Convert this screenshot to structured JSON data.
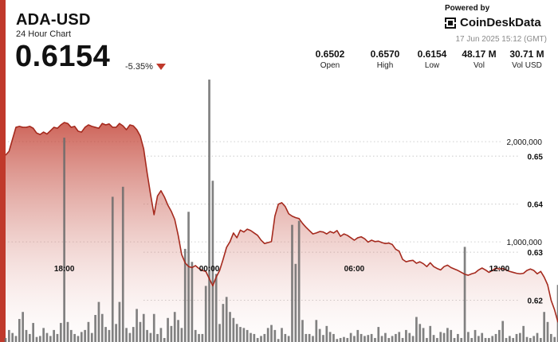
{
  "header": {
    "title": "ADA-USD",
    "subtitle": "24 Hour Chart",
    "price": "0.6154",
    "change": "-5.35%"
  },
  "branding": {
    "powered_by": "Powered by",
    "name": "CoinDeskData",
    "timestamp": "17 Jun 2025 15:12 (GMT)"
  },
  "stats": [
    {
      "value": "0.6502",
      "label": "Open"
    },
    {
      "value": "0.6570",
      "label": "High"
    },
    {
      "value": "0.6154",
      "label": "Low"
    },
    {
      "value": "48.17 M",
      "label": "Vol"
    },
    {
      "value": "30.71 M",
      "label": "Vol USD"
    }
  ],
  "colors": {
    "accent": "#c0392b",
    "line": "#a52a1e",
    "volume_bars": "#6b6b6b"
  },
  "chart_data": {
    "type": "area",
    "price_axis": {
      "ticks": [
        "0.65",
        "0.64",
        "0.63",
        "0.62"
      ],
      "ylim": [
        0.6113,
        0.6676
      ]
    },
    "volume_axis": {
      "ticks": [
        "2,000,000",
        "1,000,000"
      ],
      "ylim": [
        0,
        2700000
      ]
    },
    "x_ticks": [
      {
        "label": "18:00",
        "index": 17
      },
      {
        "label": "00:00",
        "index": 59
      },
      {
        "label": "06:00",
        "index": 101
      },
      {
        "label": "12:00",
        "index": 143
      }
    ],
    "grid": "horizontal dotted",
    "price_series": {
      "name": "ADA-USD",
      "values": [
        0.6502,
        0.651,
        0.6535,
        0.656,
        0.6562,
        0.656,
        0.656,
        0.6562,
        0.6558,
        0.6548,
        0.6545,
        0.655,
        0.6546,
        0.6553,
        0.656,
        0.6558,
        0.6565,
        0.657,
        0.6568,
        0.656,
        0.6562,
        0.6552,
        0.655,
        0.656,
        0.6565,
        0.6562,
        0.656,
        0.6558,
        0.6568,
        0.6565,
        0.6567,
        0.656,
        0.656,
        0.6568,
        0.6563,
        0.6555,
        0.6565,
        0.6563,
        0.6555,
        0.6542,
        0.6515,
        0.6465,
        0.642,
        0.6378,
        0.6417,
        0.6428,
        0.6415,
        0.6398,
        0.6385,
        0.6368,
        0.6335,
        0.6295,
        0.6278,
        0.627,
        0.6268,
        0.6272,
        0.6266,
        0.6262,
        0.626,
        0.6245,
        0.623,
        0.6248,
        0.6262,
        0.6285,
        0.631,
        0.6322,
        0.634,
        0.633,
        0.6346,
        0.6342,
        0.6348,
        0.6345,
        0.634,
        0.6335,
        0.6325,
        0.6318,
        0.632,
        0.6322,
        0.6375,
        0.64,
        0.6403,
        0.6395,
        0.638,
        0.6375,
        0.6372,
        0.637,
        0.636,
        0.6352,
        0.6345,
        0.6338,
        0.634,
        0.6343,
        0.6342,
        0.6338,
        0.6343,
        0.634,
        0.6345,
        0.6333,
        0.6338,
        0.6335,
        0.633,
        0.6325,
        0.633,
        0.6332,
        0.6328,
        0.6321,
        0.6325,
        0.6322,
        0.6323,
        0.632,
        0.6318,
        0.6319,
        0.6316,
        0.6306,
        0.6302,
        0.6285,
        0.628,
        0.6282,
        0.6283,
        0.6277,
        0.628,
        0.6276,
        0.627,
        0.6278,
        0.627,
        0.6266,
        0.6263,
        0.627,
        0.6273,
        0.6268,
        0.6265,
        0.6262,
        0.6258,
        0.6254,
        0.6252,
        0.6255,
        0.6257,
        0.6263,
        0.6267,
        0.6263,
        0.6258,
        0.6262,
        0.6267,
        0.6265,
        0.6266,
        0.6263,
        0.626,
        0.6258,
        0.6256,
        0.6255,
        0.6256,
        0.6262,
        0.6265,
        0.6262,
        0.6255,
        0.626,
        0.6248,
        0.6232,
        0.62,
        0.618,
        0.6154
      ]
    },
    "volume_series": {
      "name": "Vol",
      "values": [
        40000,
        120000,
        90000,
        60000,
        230000,
        300000,
        120000,
        80000,
        190000,
        50000,
        60000,
        140000,
        90000,
        60000,
        120000,
        80000,
        190000,
        2040000,
        200000,
        120000,
        80000,
        60000,
        100000,
        120000,
        200000,
        90000,
        270000,
        400000,
        280000,
        150000,
        120000,
        1450000,
        180000,
        400000,
        1550000,
        140000,
        90000,
        150000,
        330000,
        200000,
        280000,
        120000,
        90000,
        280000,
        80000,
        140000,
        40000,
        240000,
        160000,
        300000,
        220000,
        140000,
        930000,
        1300000,
        800000,
        120000,
        80000,
        80000,
        560000,
        2620000,
        1610000,
        680000,
        180000,
        380000,
        450000,
        300000,
        240000,
        180000,
        150000,
        140000,
        120000,
        90000,
        80000,
        40000,
        60000,
        80000,
        140000,
        170000,
        120000,
        30000,
        140000,
        80000,
        60000,
        1170000,
        780000,
        1210000,
        220000,
        80000,
        80000,
        60000,
        220000,
        130000,
        70000,
        160000,
        100000,
        80000,
        30000,
        40000,
        50000,
        40000,
        90000,
        60000,
        120000,
        80000,
        60000,
        70000,
        80000,
        40000,
        150000,
        60000,
        90000,
        40000,
        60000,
        80000,
        100000,
        40000,
        120000,
        90000,
        60000,
        250000,
        180000,
        140000,
        40000,
        160000,
        70000,
        40000,
        100000,
        90000,
        140000,
        120000,
        40000,
        80000,
        40000,
        950000,
        100000,
        40000,
        120000,
        60000,
        90000,
        40000,
        40000,
        60000,
        80000,
        120000,
        210000,
        40000,
        60000,
        40000,
        80000,
        90000,
        160000,
        50000,
        40000,
        60000,
        90000,
        40000,
        300000,
        200000,
        80000,
        50000,
        570000,
        220000,
        1300000,
        1520000,
        350000,
        2210000
      ]
    }
  }
}
